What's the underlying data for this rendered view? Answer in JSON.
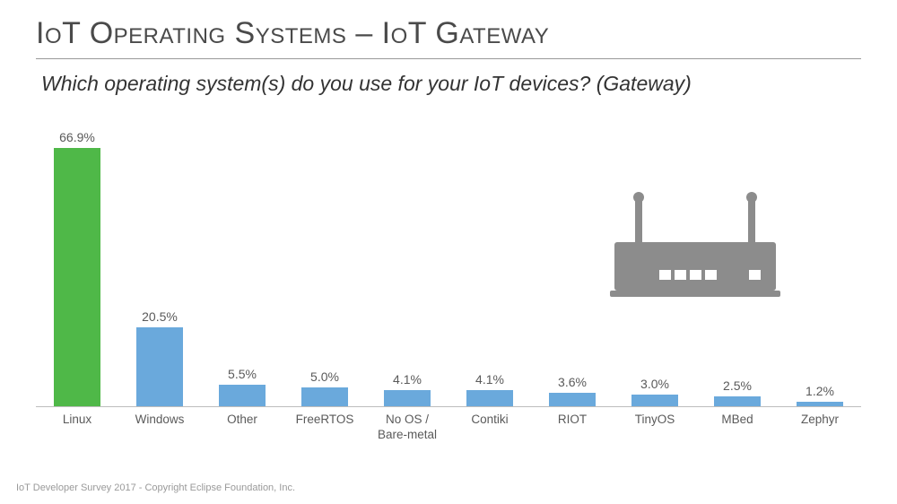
{
  "title": "IoT Operating Systems – IoT Gateway",
  "subtitle": "Which operating system(s) do you use for your IoT devices?  (Gateway)",
  "footer": "IoT Developer Survey 2017 - Copyright Eclipse Foundation, Inc.",
  "chart": {
    "type": "bar",
    "ymax": 70,
    "bar_width_pct": 56,
    "value_label_fontsize": 14,
    "axis_label_fontsize": 13.5,
    "axis_line_color": "#bdbdbd",
    "background_color": "#ffffff",
    "default_bar_color": "#6aa9dc",
    "highlight_bar_color": "#4fb848",
    "text_color": "#5a5a5a",
    "bars": [
      {
        "label": "Linux",
        "value": 66.9,
        "display": "66.9%",
        "color": "#4fb848"
      },
      {
        "label": "Windows",
        "value": 20.5,
        "display": "20.5%",
        "color": "#6aa9dc"
      },
      {
        "label": "Other",
        "value": 5.5,
        "display": "5.5%",
        "color": "#6aa9dc"
      },
      {
        "label": "FreeRTOS",
        "value": 5.0,
        "display": "5.0%",
        "color": "#6aa9dc"
      },
      {
        "label": "No OS /\nBare-metal",
        "value": 4.1,
        "display": "4.1%",
        "color": "#6aa9dc"
      },
      {
        "label": "Contiki",
        "value": 4.1,
        "display": "4.1%",
        "color": "#6aa9dc"
      },
      {
        "label": "RIOT",
        "value": 3.6,
        "display": "3.6%",
        "color": "#6aa9dc"
      },
      {
        "label": "TinyOS",
        "value": 3.0,
        "display": "3.0%",
        "color": "#6aa9dc"
      },
      {
        "label": "MBed",
        "value": 2.5,
        "display": "2.5%",
        "color": "#6aa9dc"
      },
      {
        "label": "Zephyr",
        "value": 1.2,
        "display": "1.2%",
        "color": "#6aa9dc"
      }
    ]
  },
  "decor": {
    "router_icon_color": "#8c8c8c"
  }
}
